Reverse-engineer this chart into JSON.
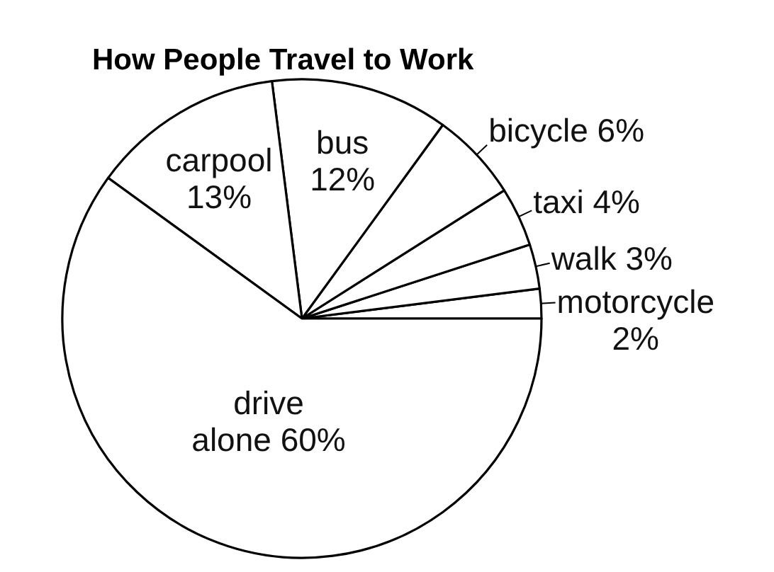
{
  "chart_data": {
    "type": "pie",
    "title": "How People Travel to Work",
    "categories": [
      "motorcycle",
      "walk",
      "taxi",
      "bicycle",
      "bus",
      "carpool",
      "drive alone"
    ],
    "values": [
      2,
      3,
      4,
      6,
      12,
      13,
      60
    ],
    "value_labels": [
      "2%",
      "3%",
      "4%",
      "6%",
      "12%",
      "13%",
      "60%"
    ],
    "colors": [
      "#ffffff",
      "#ffffff",
      "#ffffff",
      "#ffffff",
      "#ffffff",
      "#ffffff",
      "#ffffff"
    ]
  }
}
